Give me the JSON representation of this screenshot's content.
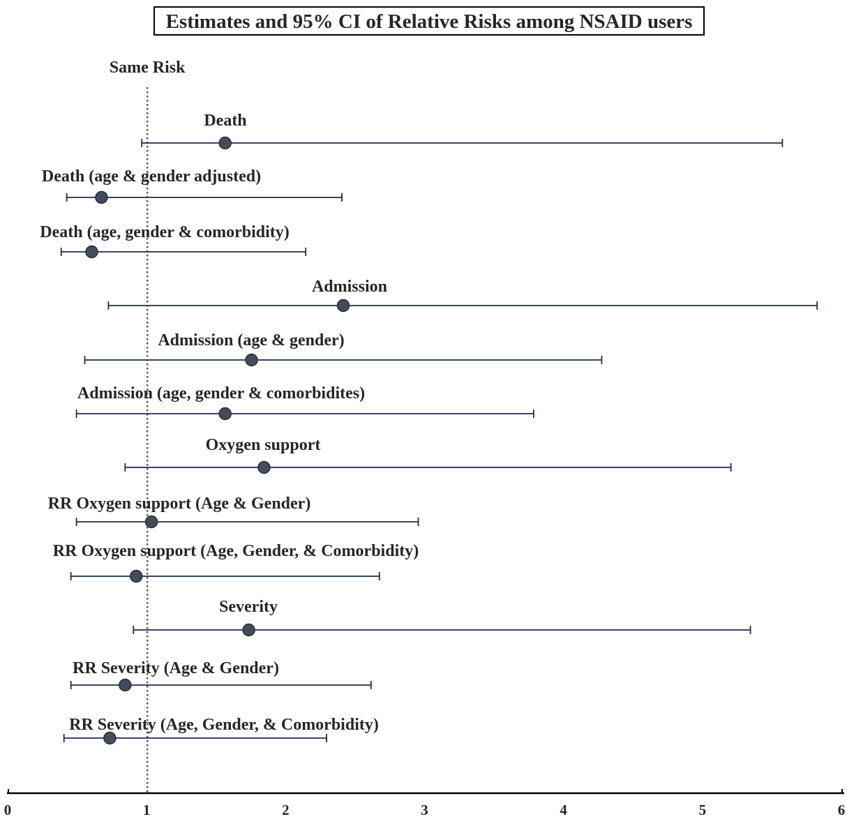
{
  "chart_data": {
    "type": "scatter",
    "title": "Estimates and 95% CI of Relative Risks among NSAID users",
    "xlim": [
      0,
      6
    ],
    "xticks": [
      0,
      1,
      2,
      3,
      4,
      5,
      6
    ],
    "grid": false,
    "reference_line": {
      "x": 1,
      "label": "Same Risk"
    },
    "points": [
      {
        "label": "Death",
        "estimate": 1.56,
        "lower": 0.96,
        "upper": 5.57
      },
      {
        "label": "Death (age & gender adjusted)",
        "estimate": 0.67,
        "lower": 0.42,
        "upper": 2.4
      },
      {
        "label": "Death (age, gender & comorbidity)",
        "estimate": 0.6,
        "lower": 0.38,
        "upper": 2.14
      },
      {
        "label": "Admission",
        "estimate": 2.41,
        "lower": 0.72,
        "upper": 5.82
      },
      {
        "label": "Admission (age & gender)",
        "estimate": 1.75,
        "lower": 0.55,
        "upper": 4.27
      },
      {
        "label": "Admission (age, gender & comorbidites)",
        "estimate": 1.56,
        "lower": 0.49,
        "upper": 3.78
      },
      {
        "label": "Oxygen support",
        "estimate": 1.84,
        "lower": 0.84,
        "upper": 5.2
      },
      {
        "label": "RR Oxygen support (Age & Gender)",
        "estimate": 1.03,
        "lower": 0.49,
        "upper": 2.95
      },
      {
        "label": "RR Oxygen support (Age, Gender, & Comorbidity)",
        "estimate": 0.92,
        "lower": 0.45,
        "upper": 2.67
      },
      {
        "label": "Severity",
        "estimate": 1.73,
        "lower": 0.9,
        "upper": 5.34
      },
      {
        "label": "RR Severity (Age & Gender)",
        "estimate": 0.84,
        "lower": 0.45,
        "upper": 2.61
      },
      {
        "label": "RR Severity (Age, Gender, & Comorbidity)",
        "estimate": 0.73,
        "lower": 0.4,
        "upper": 2.29
      }
    ],
    "colors": {
      "point_fill": "#444c5c",
      "point_stroke": "#262c3a",
      "ci_line": "#1c2b4e",
      "reference_line": "#555555",
      "axis": "#000000"
    }
  }
}
